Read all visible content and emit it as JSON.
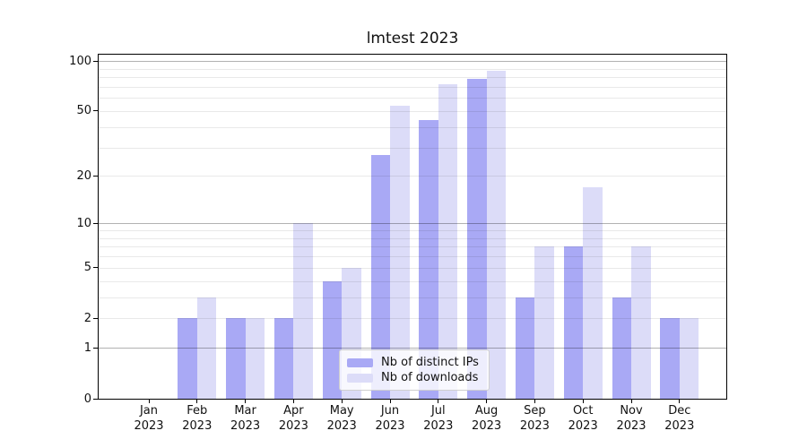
{
  "chart_data": {
    "type": "bar",
    "title": "lmtest 2023",
    "x": {
      "categories": [
        "Jan",
        "Feb",
        "Mar",
        "Apr",
        "May",
        "Jun",
        "Jul",
        "Aug",
        "Sep",
        "Oct",
        "Nov",
        "Dec"
      ],
      "year_label": "2023"
    },
    "series": [
      {
        "name": "Nb of distinct IPs",
        "color": "#a9a9f5",
        "values": [
          0,
          2,
          2,
          2,
          4,
          27,
          44,
          78,
          3,
          7,
          3,
          2
        ]
      },
      {
        "name": "Nb of downloads",
        "color": "#dcdcf8",
        "values": [
          0,
          3,
          2,
          10,
          5,
          54,
          73,
          88,
          7,
          17,
          7,
          2
        ]
      }
    ],
    "y_axis": {
      "scale": "log1p",
      "tick_values": [
        0,
        1,
        2,
        5,
        10,
        20,
        50,
        100
      ],
      "tick_labels": [
        "0",
        "1",
        "2",
        "5",
        "10",
        "20",
        "50",
        "100"
      ],
      "major_grid_values": [
        1,
        10,
        100
      ],
      "range_max": 109
    },
    "grid": "horizontal",
    "legend": {
      "position": "inside-bottom-center"
    }
  },
  "colors": {
    "bar_ips": "#a9a9f5",
    "bar_downloads": "#dcdcf8",
    "grid_major": "#b0b0b0",
    "grid_minor": "#e8e8e8",
    "axis": "#000000",
    "text": "#111111",
    "legend_bg": "rgba(255,255,255,0.8)",
    "legend_border": "#cfcfcf"
  }
}
